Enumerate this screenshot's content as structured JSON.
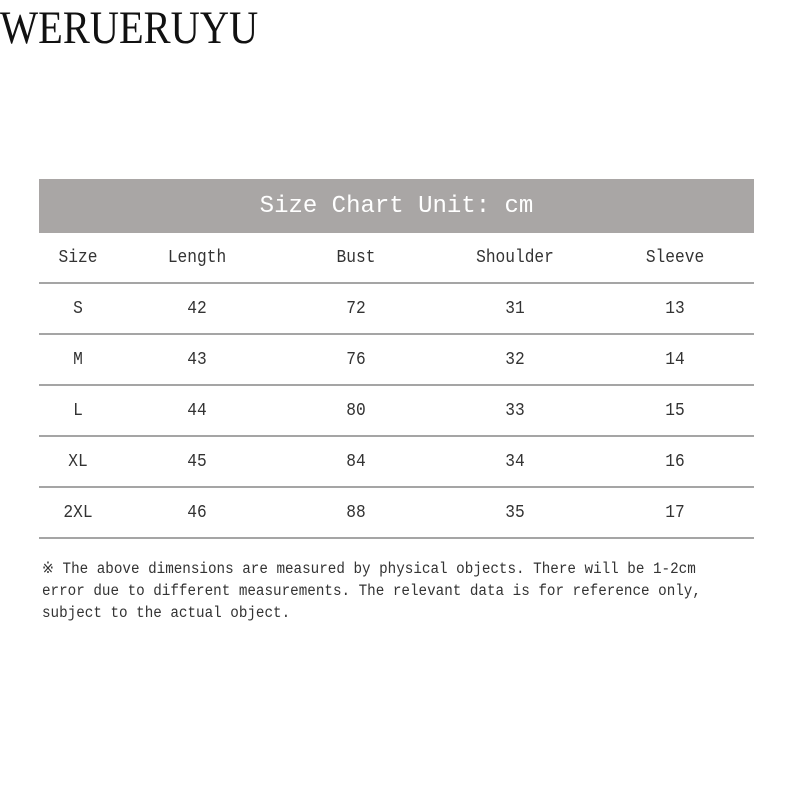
{
  "brand": "WERUERUYU",
  "table": {
    "title": "Size Chart Unit: cm",
    "headers": [
      "Size",
      "Length",
      "Bust",
      "Shoulder",
      "Sleeve"
    ],
    "rows": [
      [
        "S",
        "42",
        "72",
        "31",
        "13"
      ],
      [
        "M",
        "43",
        "76",
        "32",
        "14"
      ],
      [
        "L",
        "44",
        "80",
        "33",
        "15"
      ],
      [
        "XL",
        "45",
        "84",
        "34",
        "16"
      ],
      [
        "2XL",
        "46",
        "88",
        "35",
        "17"
      ]
    ],
    "header_color": "#a9a6a5"
  },
  "note": "※ The above dimensions are measured by physical objects. There will be 1-2cm error due to different measurements. The relevant data is for reference only, subject to the actual object."
}
